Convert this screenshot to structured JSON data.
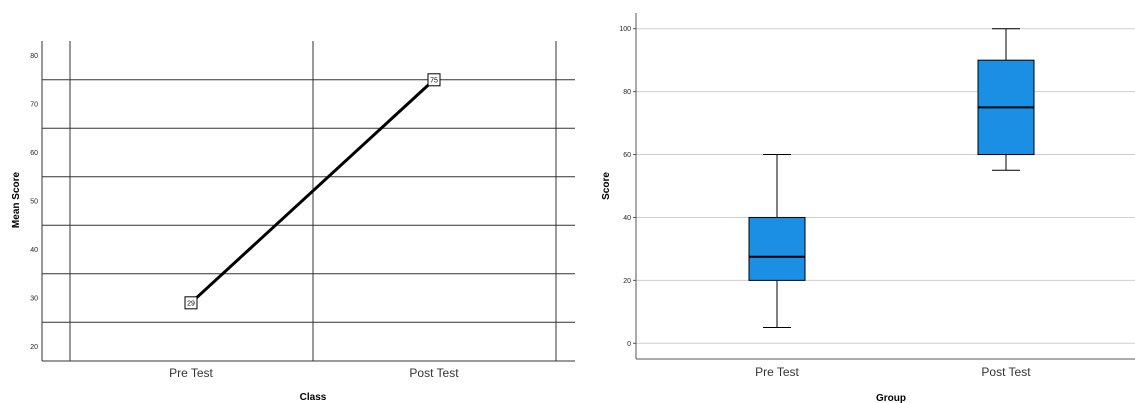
{
  "chart_data": [
    {
      "type": "line",
      "categories": [
        "Pre Test",
        "Post Test"
      ],
      "values": [
        29,
        75
      ],
      "point_labels": [
        "29",
        "75"
      ],
      "xlabel": "Class",
      "ylabel": "Mean Score",
      "ylim": [
        17,
        83
      ],
      "yticks": [
        20,
        30,
        40,
        50,
        60,
        70,
        80
      ],
      "horizontal_gridlines": [
        25,
        35,
        45,
        55,
        65,
        75
      ],
      "grid": true,
      "colors": {
        "line": "#000000",
        "grid": "#333333"
      }
    },
    {
      "type": "box",
      "categories": [
        "Pre Test",
        "Post Test"
      ],
      "boxes": [
        {
          "min": 5,
          "q1": 20,
          "median": 27.5,
          "q3": 40,
          "max": 60
        },
        {
          "min": 55,
          "q1": 60,
          "median": 75,
          "q3": 90,
          "max": 100
        }
      ],
      "xlabel": "Group",
      "ylabel": "Score",
      "ylim": [
        -5,
        105
      ],
      "yticks": [
        0,
        20,
        40,
        60,
        80,
        100
      ],
      "grid": true,
      "colors": {
        "box": "#1a8fe3",
        "grid": "#cfcfcf"
      }
    }
  ]
}
